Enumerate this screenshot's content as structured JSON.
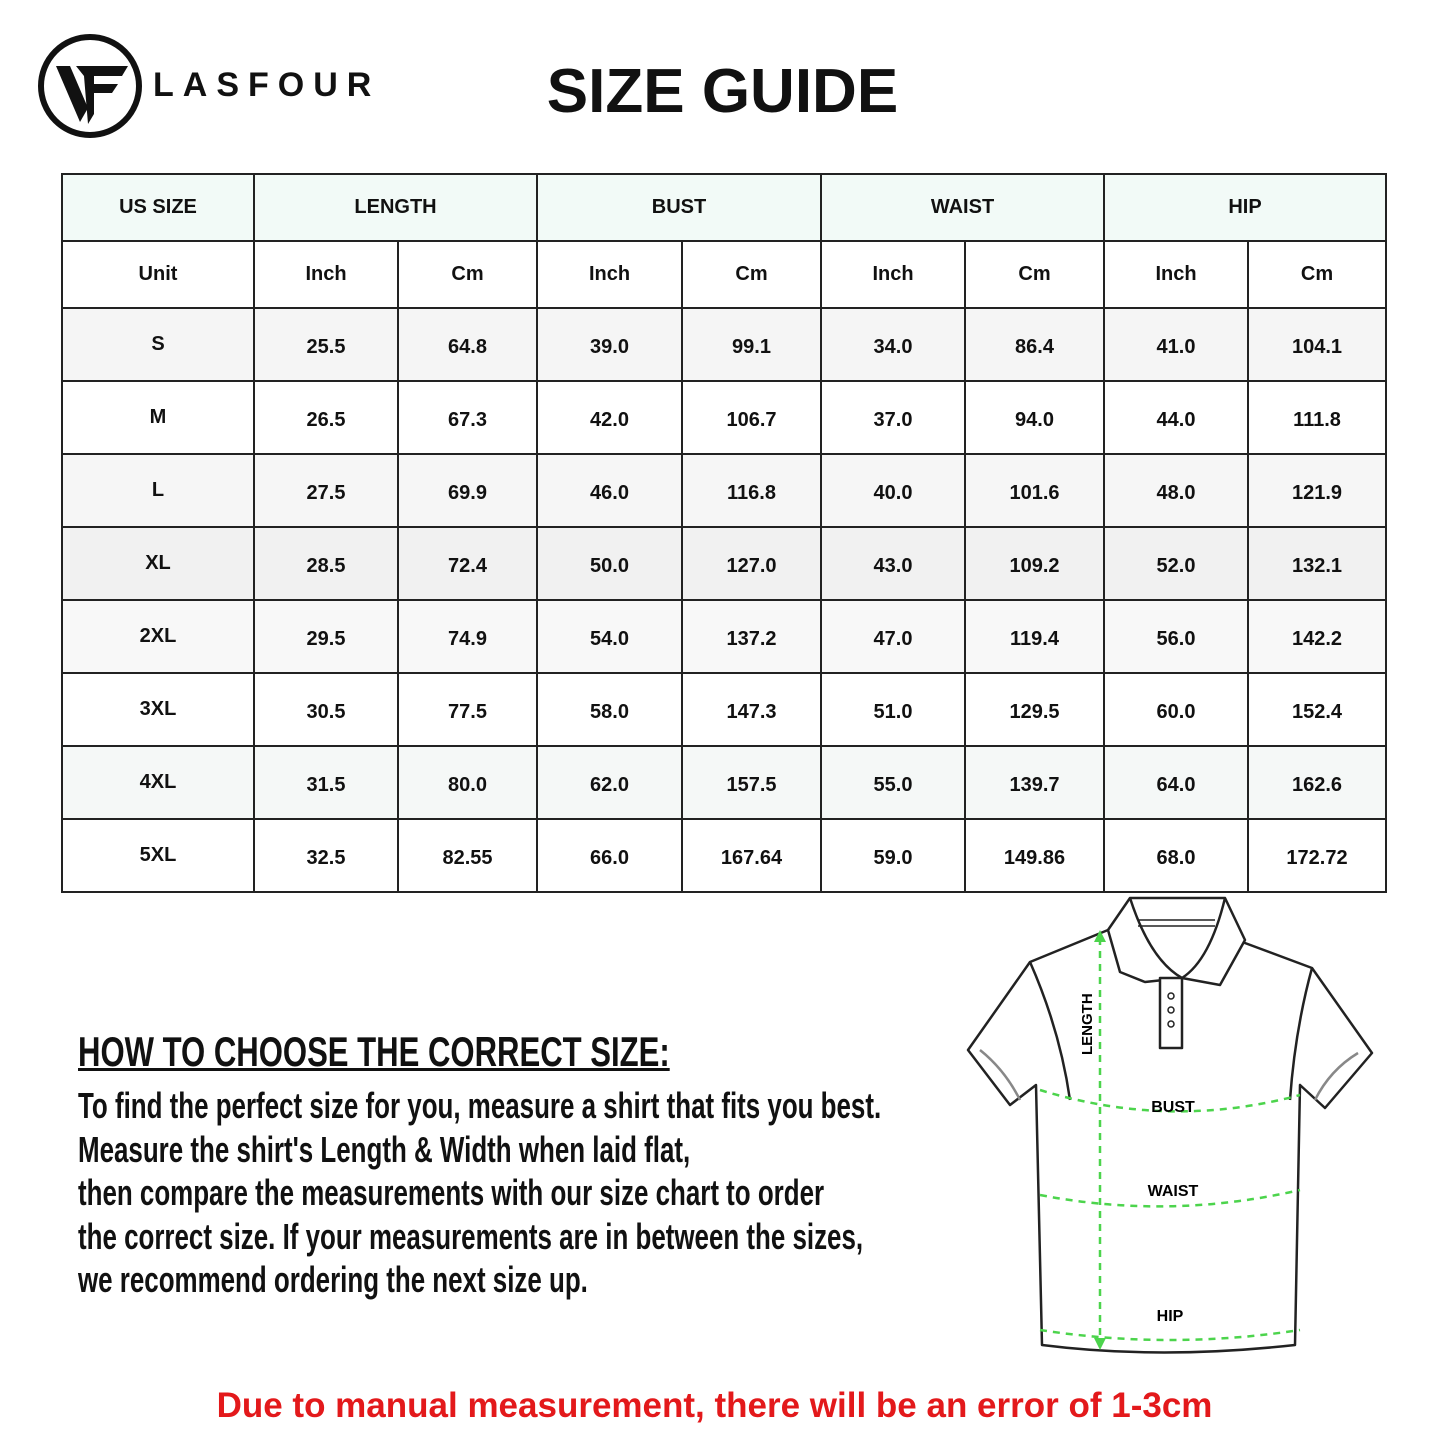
{
  "brand": {
    "name": "LASFOUR",
    "logo_icon": "vf-circle-logo-icon"
  },
  "title": "SIZE GUIDE",
  "table": {
    "group_headers": [
      "US SIZE",
      "LENGTH",
      "BUST",
      "WAIST",
      "HIP"
    ],
    "unit_row": [
      "Unit",
      "Inch",
      "Cm",
      "Inch",
      "Cm",
      "Inch",
      "Cm",
      "Inch",
      "Cm"
    ],
    "rows": [
      [
        "S",
        "25.5",
        "64.8",
        "39.0",
        "99.1",
        "34.0",
        "86.4",
        "41.0",
        "104.1"
      ],
      [
        "M",
        "26.5",
        "67.3",
        "42.0",
        "106.7",
        "37.0",
        "94.0",
        "44.0",
        "111.8"
      ],
      [
        "L",
        "27.5",
        "69.9",
        "46.0",
        "116.8",
        "40.0",
        "101.6",
        "48.0",
        "121.9"
      ],
      [
        "XL",
        "28.5",
        "72.4",
        "50.0",
        "127.0",
        "43.0",
        "109.2",
        "52.0",
        "132.1"
      ],
      [
        "2XL",
        "29.5",
        "74.9",
        "54.0",
        "137.2",
        "47.0",
        "119.4",
        "56.0",
        "142.2"
      ],
      [
        "3XL",
        "30.5",
        "77.5",
        "58.0",
        "147.3",
        "51.0",
        "129.5",
        "60.0",
        "152.4"
      ],
      [
        "4XL",
        "31.5",
        "80.0",
        "62.0",
        "157.5",
        "55.0",
        "139.7",
        "64.0",
        "162.6"
      ],
      [
        "5XL",
        "32.5",
        "82.55",
        "66.0",
        "167.64",
        "59.0",
        "149.86",
        "68.0",
        "172.72"
      ]
    ],
    "row_colors": [
      "#f5f5f5",
      "#ffffff",
      "#f6f6f6",
      "#f1f1f1",
      "#f8f8f8",
      "#ffffff",
      "#f5f8f7",
      "#ffffff"
    ],
    "header_color": "#f2faf7"
  },
  "how_to": {
    "heading": "HOW TO CHOOSE THE CORRECT SIZE:",
    "lines": [
      "To find the perfect size for you, measure a shirt that fits you best.",
      "Measure the shirt's Length & Width when laid flat,",
      "then compare the measurements with our size chart to order",
      "the correct size. If your measurements are in between the sizes,",
      "we recommend ordering the next size up."
    ]
  },
  "diagram": {
    "labels": {
      "length": "LENGTH",
      "bust": "BUST",
      "waist": "WAIST",
      "hip": "HIP"
    },
    "measure_color": "#4cd44c"
  },
  "note": {
    "text": "Due to manual measurement, there will be an error of 1-3cm",
    "color": "#e3191b"
  }
}
